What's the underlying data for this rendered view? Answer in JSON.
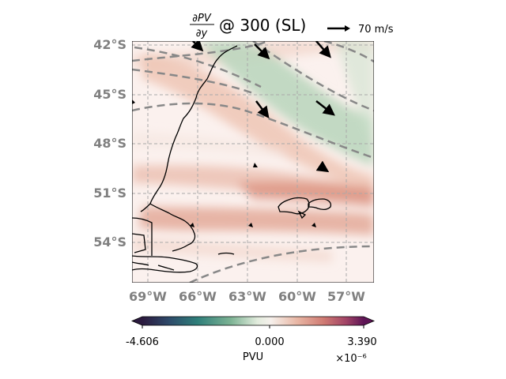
{
  "title": {
    "frac_num": "∂PV",
    "frac_den": "∂y",
    "suffix": "@ 300 (SL)"
  },
  "quiver_key": {
    "label": "70 m/s"
  },
  "map": {
    "lat_labels": [
      "42°S",
      "45°S",
      "48°S",
      "51°S",
      "54°S"
    ],
    "lon_labels": [
      "69°W",
      "66°W",
      "63°W",
      "60°W",
      "57°W"
    ],
    "extent": {
      "lon_min": -70,
      "lon_max": -55.5,
      "lat_min": -56.5,
      "lat_max": -42
    },
    "gridlines": true
  },
  "colorbar": {
    "min_label": "-4.606",
    "mid_label": "0.000",
    "max_label": "3.390",
    "units": "PVU",
    "scale": "×10⁻⁶",
    "colors": [
      "#2b1a3e",
      "#2e4a6a",
      "#2f7f7a",
      "#6aa988",
      "#b7d4b8",
      "#f4f1ec",
      "#ecc0b0",
      "#d88a78",
      "#b2506a",
      "#6e1a5a"
    ]
  }
}
